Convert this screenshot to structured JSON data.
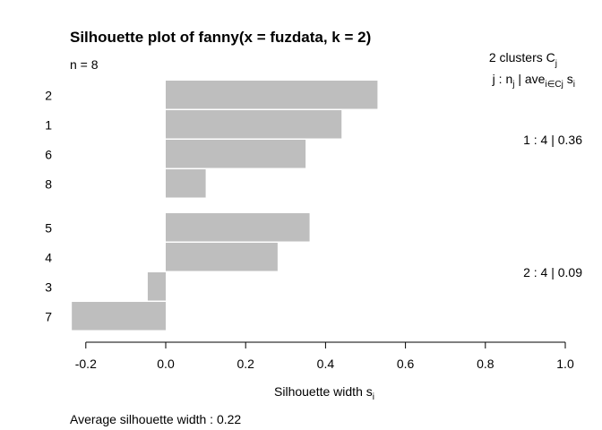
{
  "chart_data": {
    "type": "bar",
    "orientation": "horizontal",
    "title": "Silhouette plot of fanny(x = fuzdata, k = 2)",
    "n_label": "n = 8",
    "legend_header_line1": "2  clusters  C",
    "legend_header_line1_sub": "j",
    "legend_header_line2": "j :  n",
    "legend_header_line2_sub_n": "j",
    "legend_header_line2_mid": " | ave",
    "legend_header_line2_sub_ave": "i∈Cj",
    "legend_header_line2_end": "  s",
    "legend_header_line2_sub_s": "i",
    "xlabel": "Silhouette width s",
    "xlabel_sub": "i",
    "average_label": "Average silhouette width :  0.22",
    "xlim": [
      -0.24,
      1.0
    ],
    "xticks": [
      -0.2,
      0.0,
      0.2,
      0.4,
      0.6,
      0.8,
      1.0
    ],
    "xtick_labels": [
      "-0.2",
      "0.0",
      "0.2",
      "0.4",
      "0.6",
      "0.8",
      "1.0"
    ],
    "bar_color": "#bebebe",
    "clusters": [
      {
        "label": "1 :   4  |  0.36",
        "bars": [
          {
            "id": "2",
            "value": 0.53
          },
          {
            "id": "1",
            "value": 0.44
          },
          {
            "id": "6",
            "value": 0.35
          },
          {
            "id": "8",
            "value": 0.1
          }
        ]
      },
      {
        "label": "2 :   4  |  0.09",
        "bars": [
          {
            "id": "5",
            "value": 0.36
          },
          {
            "id": "4",
            "value": 0.28
          },
          {
            "id": "3",
            "value": -0.045
          },
          {
            "id": "7",
            "value": -0.235
          }
        ]
      }
    ]
  }
}
